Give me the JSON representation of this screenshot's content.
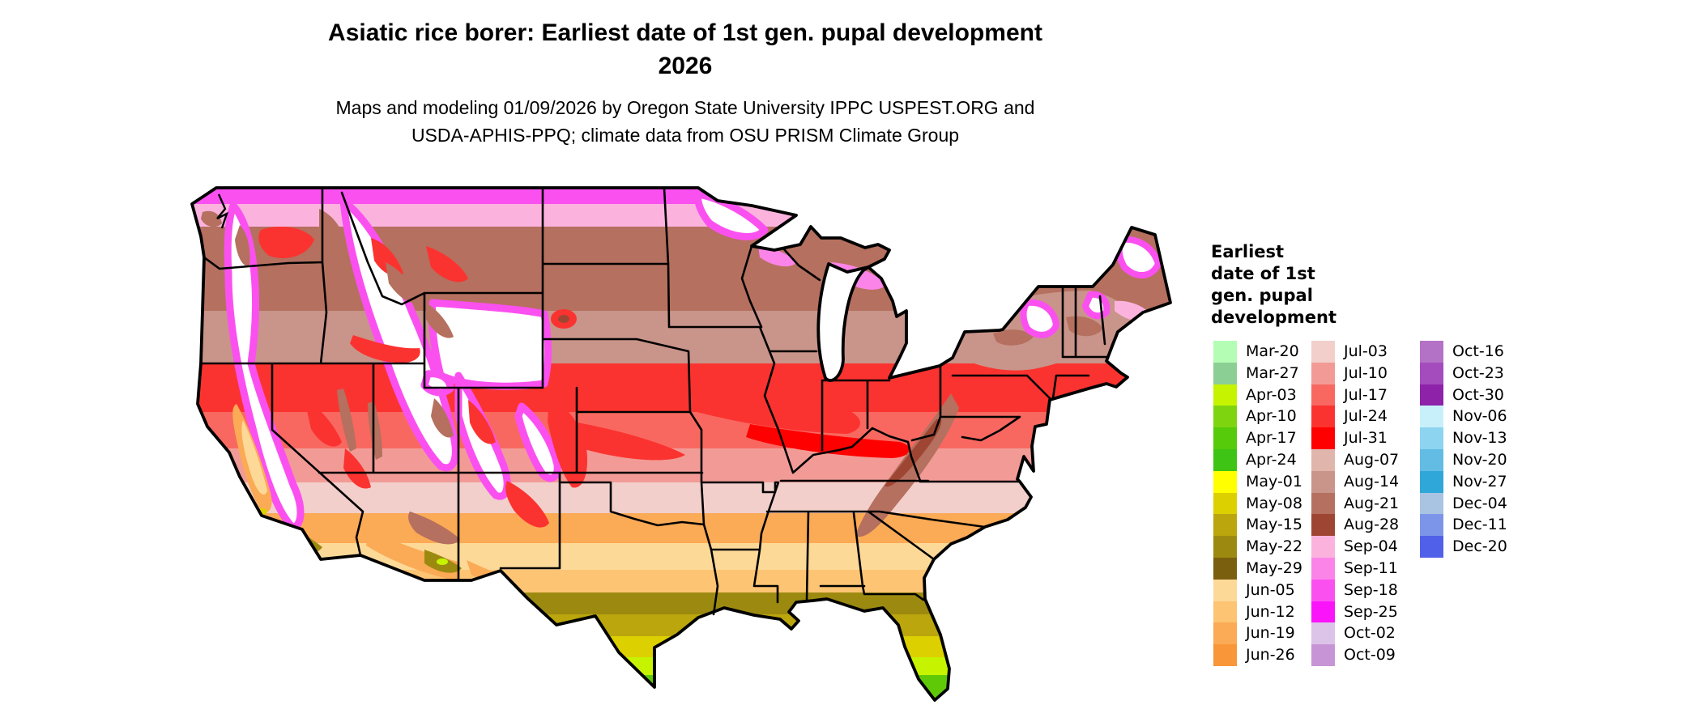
{
  "title": {
    "line1": "Asiatic rice borer: Earliest date of 1st gen. pupal development",
    "line2": "2026"
  },
  "subtitle": {
    "line1": "Maps and modeling 01/09/2026 by Oregon State University IPPC USPEST.ORG and",
    "line2": "USDA-APHIS-PPQ; climate data from OSU PRISM Climate Group"
  },
  "map": {
    "type": "choropleth-raster",
    "extent": "contiguous United States",
    "no_data_color": "#ffffff",
    "border_color": "#000000"
  },
  "legend": {
    "title_lines": [
      "Earliest",
      "date of 1st",
      "gen. pupal",
      "development"
    ],
    "columns": [
      {
        "entries": [
          {
            "label": "Mar-20",
            "color": "#b3fdb5"
          },
          {
            "label": "Mar-27",
            "color": "#8bcf94"
          },
          {
            "label": "Apr-03",
            "color": "#c6f400"
          },
          {
            "label": "Apr-10",
            "color": "#7fd410"
          },
          {
            "label": "Apr-17",
            "color": "#55cb0a"
          },
          {
            "label": "Apr-24",
            "color": "#3ec414"
          },
          {
            "label": "May-01",
            "color": "#ffff00"
          },
          {
            "label": "May-08",
            "color": "#ddd000"
          },
          {
            "label": "May-15",
            "color": "#bba60d"
          },
          {
            "label": "May-22",
            "color": "#9c8a10"
          },
          {
            "label": "May-29",
            "color": "#7a5f0e"
          },
          {
            "label": "Jun-05",
            "color": "#fdd998"
          },
          {
            "label": "Jun-12",
            "color": "#fcc473"
          },
          {
            "label": "Jun-19",
            "color": "#fbaa55"
          },
          {
            "label": "Jun-26",
            "color": "#f9963a"
          }
        ]
      },
      {
        "entries": [
          {
            "label": "Jul-03",
            "color": "#f2cfcb"
          },
          {
            "label": "Jul-10",
            "color": "#f29b96"
          },
          {
            "label": "Jul-17",
            "color": "#f86860"
          },
          {
            "label": "Jul-24",
            "color": "#fb3330"
          },
          {
            "label": "Jul-31",
            "color": "#ff0000"
          },
          {
            "label": "Aug-07",
            "color": "#e0b5ab"
          },
          {
            "label": "Aug-14",
            "color": "#c9948a"
          },
          {
            "label": "Aug-21",
            "color": "#b5705f"
          },
          {
            "label": "Aug-28",
            "color": "#9e4633"
          },
          {
            "label": "Sep-04",
            "color": "#fbb3de"
          },
          {
            "label": "Sep-11",
            "color": "#fb84e8"
          },
          {
            "label": "Sep-18",
            "color": "#fb50f0"
          },
          {
            "label": "Sep-25",
            "color": "#fa14fa"
          },
          {
            "label": "Oct-02",
            "color": "#dcc3e8"
          },
          {
            "label": "Oct-09",
            "color": "#c795d5"
          }
        ]
      },
      {
        "entries": [
          {
            "label": "Oct-16",
            "color": "#b472c6"
          },
          {
            "label": "Oct-23",
            "color": "#a44cbd"
          },
          {
            "label": "Oct-30",
            "color": "#8e22a8"
          },
          {
            "label": "Nov-06",
            "color": "#c8f0fb"
          },
          {
            "label": "Nov-13",
            "color": "#8cd4f0"
          },
          {
            "label": "Nov-20",
            "color": "#63bce4"
          },
          {
            "label": "Nov-27",
            "color": "#2fa7d8"
          },
          {
            "label": "Dec-04",
            "color": "#a9c4e2"
          },
          {
            "label": "Dec-11",
            "color": "#7d95e8"
          },
          {
            "label": "Dec-20",
            "color": "#5160e8"
          }
        ]
      }
    ]
  }
}
